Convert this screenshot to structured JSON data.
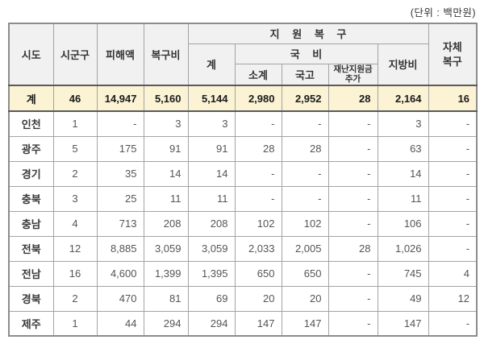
{
  "unit_label": "(단위 : 백만원)",
  "colors": {
    "header_bg": "#f1f1f1",
    "total_row_bg": "#fbf3d4",
    "grid_border": "#a3a3a3",
    "outer_border": "#8c8c8c",
    "total_row_border": "#595959"
  },
  "table": {
    "header": {
      "sido": "시도",
      "sigungu": "시군구",
      "damage": "피해액",
      "recovery_cost": "복구비",
      "support_recovery": "지 원 복 구",
      "support_total": "계",
      "national_fund": "국 비",
      "subtotal": "소계",
      "treasury": "국고",
      "disaster_fund_extra": "재난지원금\n추가",
      "local_fund": "지방비",
      "self_recovery": "자체\n복구"
    },
    "rows": [
      {
        "label": "계",
        "highlight": true,
        "values": [
          "46",
          "14,947",
          "5,160",
          "5,144",
          "2,980",
          "2,952",
          "28",
          "2,164",
          "16"
        ]
      },
      {
        "label": "인천",
        "highlight": false,
        "values": [
          "1",
          "-",
          "3",
          "3",
          "-",
          "-",
          "-",
          "3",
          "-"
        ]
      },
      {
        "label": "광주",
        "highlight": false,
        "values": [
          "5",
          "175",
          "91",
          "91",
          "28",
          "28",
          "-",
          "63",
          "-"
        ]
      },
      {
        "label": "경기",
        "highlight": false,
        "values": [
          "2",
          "35",
          "14",
          "14",
          "-",
          "-",
          "-",
          "14",
          "-"
        ]
      },
      {
        "label": "충북",
        "highlight": false,
        "values": [
          "3",
          "25",
          "11",
          "11",
          "-",
          "-",
          "-",
          "11",
          "-"
        ]
      },
      {
        "label": "충남",
        "highlight": false,
        "values": [
          "4",
          "713",
          "208",
          "208",
          "102",
          "102",
          "-",
          "106",
          "-"
        ]
      },
      {
        "label": "전북",
        "highlight": false,
        "values": [
          "12",
          "8,885",
          "3,059",
          "3,059",
          "2,033",
          "2,005",
          "28",
          "1,026",
          "-"
        ]
      },
      {
        "label": "전남",
        "highlight": false,
        "values": [
          "16",
          "4,600",
          "1,399",
          "1,395",
          "650",
          "650",
          "-",
          "745",
          "4"
        ]
      },
      {
        "label": "경북",
        "highlight": false,
        "values": [
          "2",
          "470",
          "81",
          "69",
          "20",
          "20",
          "-",
          "49",
          "12"
        ]
      },
      {
        "label": "제주",
        "highlight": false,
        "values": [
          "1",
          "44",
          "294",
          "294",
          "147",
          "147",
          "-",
          "147",
          "-"
        ]
      }
    ]
  }
}
